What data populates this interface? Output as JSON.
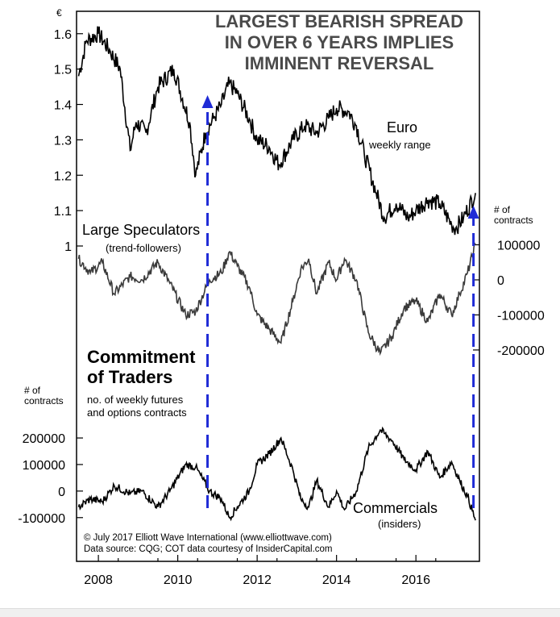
{
  "title": [
    "LARGEST BEARISH SPREAD",
    "IN OVER 6 YEARS IMPLIES",
    "IMMINENT REVERSAL"
  ],
  "labels": {
    "euro_symbol": "€",
    "euro": "Euro",
    "euro_sub": "weekly range",
    "spec": "Large Speculators",
    "spec_sub": "(trend-followers)",
    "cot1": "Commitment",
    "cot2": "of Traders",
    "cot_sub1": "no. of weekly futures",
    "cot_sub2": "and options contracts",
    "comm": "Commercials",
    "comm_sub": "(insiders)",
    "contracts_right1": "# of",
    "contracts_right2": "contracts",
    "contracts_left1": "# of",
    "contracts_left2": "contracts"
  },
  "credit": [
    "© July 2017 Elliott Wave International (www.elliottwave.com)",
    "Data source: CQG; COT data courtesy of InsiderCapital.com"
  ],
  "colors": {
    "line": "#000000",
    "specLine": "#3a3a3a",
    "arrow": "#1f2bd6",
    "title": "#4a4a4a"
  },
  "chart_data": [
    {
      "type": "line",
      "name": "Euro",
      "ylabel": "€",
      "ylim": [
        1.0,
        1.62
      ],
      "yticks": [
        "1.6",
        "1.5",
        "1.4",
        "1.3",
        "1.2",
        "1.1",
        "1"
      ],
      "x": [
        2007.5,
        2007.7,
        2008.0,
        2008.3,
        2008.55,
        2008.8,
        2008.95,
        2009.2,
        2009.5,
        2009.9,
        2010.3,
        2010.45,
        2010.7,
        2010.9,
        2011.1,
        2011.3,
        2011.5,
        2011.8,
        2012.0,
        2012.3,
        2012.55,
        2012.9,
        2013.2,
        2013.5,
        2013.8,
        2014.0,
        2014.3,
        2014.5,
        2014.7,
        2015.0,
        2015.2,
        2015.5,
        2015.8,
        2016.0,
        2016.3,
        2016.6,
        2016.9,
        2017.0,
        2017.2,
        2017.5
      ],
      "values": [
        1.48,
        1.58,
        1.6,
        1.55,
        1.5,
        1.27,
        1.35,
        1.32,
        1.45,
        1.5,
        1.35,
        1.2,
        1.32,
        1.36,
        1.4,
        1.46,
        1.43,
        1.36,
        1.3,
        1.28,
        1.23,
        1.3,
        1.34,
        1.32,
        1.36,
        1.39,
        1.38,
        1.34,
        1.26,
        1.15,
        1.08,
        1.12,
        1.08,
        1.1,
        1.13,
        1.12,
        1.06,
        1.05,
        1.08,
        1.15
      ]
    },
    {
      "type": "line",
      "name": "Large Speculators",
      "ylabel": "# of contracts",
      "ylim": [
        -260000,
        115000
      ],
      "yticks": [
        "100000",
        "0",
        "-100000",
        "-200000"
      ],
      "x": [
        2007.5,
        2007.8,
        2008.1,
        2008.4,
        2008.8,
        2009.1,
        2009.5,
        2009.8,
        2010.2,
        2010.45,
        2010.8,
        2011.1,
        2011.3,
        2011.5,
        2011.8,
        2012.0,
        2012.3,
        2012.6,
        2012.9,
        2013.1,
        2013.3,
        2013.5,
        2013.8,
        2014.0,
        2014.2,
        2014.5,
        2014.8,
        2015.1,
        2015.4,
        2015.7,
        2016.0,
        2016.3,
        2016.6,
        2016.9,
        2017.1,
        2017.3,
        2017.5
      ],
      "values": [
        60000,
        20000,
        50000,
        -40000,
        10000,
        0,
        50000,
        -10000,
        -100000,
        -90000,
        0,
        20000,
        80000,
        40000,
        -20000,
        -100000,
        -140000,
        -180000,
        -60000,
        30000,
        60000,
        -40000,
        50000,
        0,
        60000,
        0,
        -150000,
        -210000,
        -160000,
        -80000,
        -60000,
        -120000,
        -40000,
        -100000,
        -40000,
        20000,
        100000
      ]
    },
    {
      "type": "line",
      "name": "Commercials",
      "ylabel": "# of contracts",
      "ylim": [
        -125000,
        270000
      ],
      "yticks": [
        "200000",
        "100000",
        "0",
        "-100000"
      ],
      "x": [
        2007.5,
        2007.8,
        2008.1,
        2008.4,
        2008.8,
        2009.1,
        2009.5,
        2009.8,
        2010.2,
        2010.45,
        2010.8,
        2011.1,
        2011.3,
        2011.5,
        2011.8,
        2012.0,
        2012.3,
        2012.6,
        2012.9,
        2013.1,
        2013.3,
        2013.5,
        2013.8,
        2014.0,
        2014.2,
        2014.5,
        2014.8,
        2015.1,
        2015.4,
        2015.7,
        2016.0,
        2016.3,
        2016.6,
        2016.9,
        2017.1,
        2017.3,
        2017.5
      ],
      "values": [
        -60000,
        -30000,
        -40000,
        20000,
        -10000,
        0,
        -60000,
        0,
        100000,
        90000,
        0,
        -30000,
        -100000,
        -60000,
        0,
        100000,
        140000,
        200000,
        80000,
        -30000,
        -60000,
        40000,
        -60000,
        0,
        -70000,
        0,
        160000,
        230000,
        190000,
        120000,
        80000,
        150000,
        50000,
        110000,
        40000,
        -20000,
        -110000
      ]
    }
  ],
  "x_axis": {
    "ticks": [
      "2008",
      "2010",
      "2012",
      "2014",
      "2016"
    ],
    "values": [
      2008,
      2010,
      2012,
      2014,
      2016
    ],
    "xlim": [
      2007.45,
      2017.6
    ]
  },
  "annotations": [
    {
      "type": "dashed-arrow",
      "x": 2010.75,
      "from": "bottom",
      "direction": "up"
    },
    {
      "type": "dashed-arrow",
      "x": 2017.45,
      "from": "bottom",
      "direction": "up"
    }
  ]
}
